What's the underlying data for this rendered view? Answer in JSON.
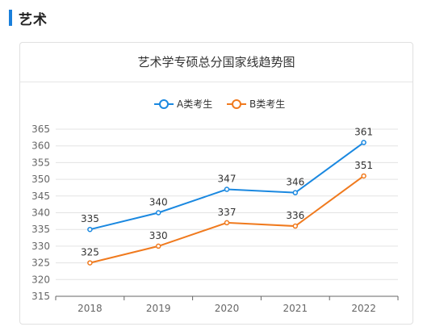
{
  "section": {
    "title": "艺术"
  },
  "chart_data": {
    "type": "line",
    "title": "艺术学专硕总分国家线趋势图",
    "categories": [
      "2018",
      "2019",
      "2020",
      "2021",
      "2022"
    ],
    "series": [
      {
        "name": "A类考生",
        "color": "#1a88e0",
        "values": [
          335,
          340,
          347,
          346,
          361
        ]
      },
      {
        "name": "B类考生",
        "color": "#f07a1e",
        "values": [
          325,
          330,
          337,
          336,
          351
        ]
      }
    ],
    "ylim": [
      315,
      365
    ],
    "yticks": [
      315,
      320,
      325,
      330,
      335,
      340,
      345,
      350,
      355,
      360,
      365
    ],
    "grid": true,
    "legend": "top-center",
    "xlabel": "",
    "ylabel": ""
  }
}
